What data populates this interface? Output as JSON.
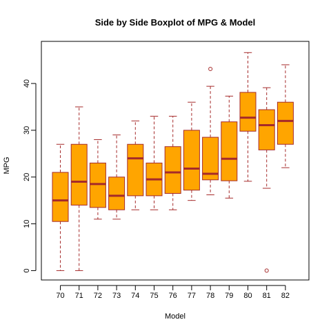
{
  "chart_data": {
    "type": "boxplot",
    "title": "Side by Side Boxplot of MPG & Model",
    "xlabel": "Model",
    "ylabel": "MPG",
    "ylim": [
      -2,
      49
    ],
    "yticks": [
      0,
      10,
      20,
      30,
      40
    ],
    "grid": false,
    "legend": "none",
    "colors": {
      "box_fill": "#FFA500",
      "box_border": "#A52A2A",
      "median": "#A52A2A",
      "whisker": "#A52A2A",
      "outlier": "#A52A2A",
      "frame": "#000000"
    },
    "categories": [
      "70",
      "71",
      "72",
      "73",
      "74",
      "75",
      "76",
      "77",
      "78",
      "79",
      "80",
      "81",
      "82"
    ],
    "boxes": [
      {
        "min": 0,
        "q1": 10.5,
        "median": 15,
        "q3": 21,
        "max": 27,
        "outliers": []
      },
      {
        "min": 0,
        "q1": 14,
        "median": 19,
        "q3": 27,
        "max": 35,
        "outliers": []
      },
      {
        "min": 11,
        "q1": 13.5,
        "median": 18.5,
        "q3": 23,
        "max": 28,
        "outliers": []
      },
      {
        "min": 11,
        "q1": 13,
        "median": 16,
        "q3": 20,
        "max": 29,
        "outliers": []
      },
      {
        "min": 13,
        "q1": 16,
        "median": 24,
        "q3": 27,
        "max": 32,
        "outliers": []
      },
      {
        "min": 13,
        "q1": 16,
        "median": 19.5,
        "q3": 23,
        "max": 33,
        "outliers": []
      },
      {
        "min": 13,
        "q1": 16.5,
        "median": 21,
        "q3": 26.5,
        "max": 33,
        "outliers": []
      },
      {
        "min": 15,
        "q1": 17.2,
        "median": 21.8,
        "q3": 30,
        "max": 36,
        "outliers": []
      },
      {
        "min": 16.2,
        "q1": 19.4,
        "median": 20.7,
        "q3": 28.5,
        "max": 39.4,
        "outliers": [
          43.1
        ]
      },
      {
        "min": 15.5,
        "q1": 19.2,
        "median": 23.9,
        "q3": 31.8,
        "max": 37.3,
        "outliers": []
      },
      {
        "min": 19.1,
        "q1": 29.8,
        "median": 32.7,
        "q3": 38.1,
        "max": 46.6,
        "outliers": []
      },
      {
        "min": 17.6,
        "q1": 25.8,
        "median": 31.1,
        "q3": 34.4,
        "max": 39.1,
        "outliers": [
          0
        ]
      },
      {
        "min": 22,
        "q1": 27,
        "median": 32,
        "q3": 36,
        "max": 44,
        "outliers": []
      }
    ]
  }
}
